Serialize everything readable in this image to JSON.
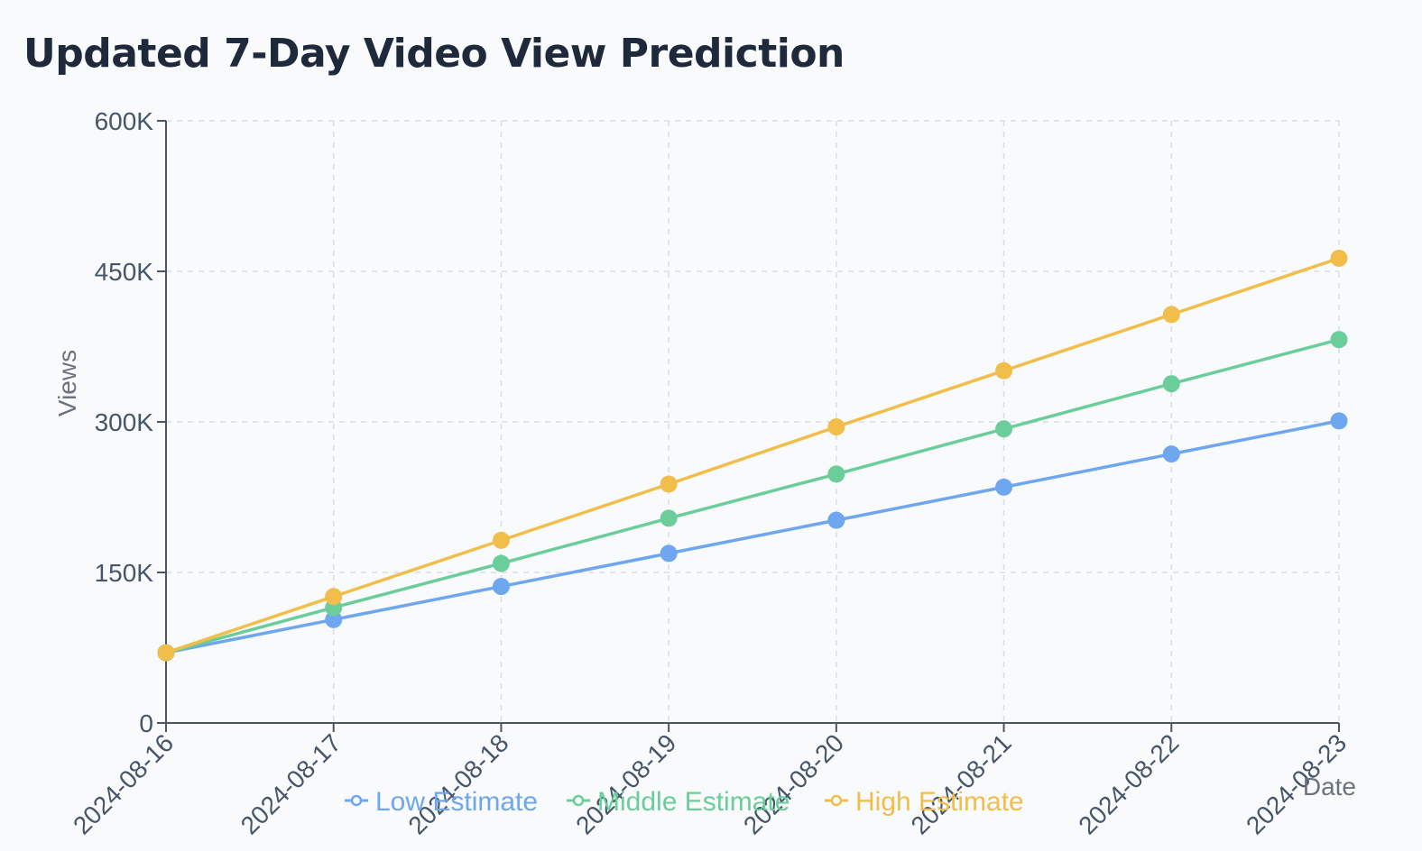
{
  "chart_data": {
    "type": "line",
    "title": "Updated 7-Day Video View Prediction",
    "xlabel": "Date",
    "ylabel": "Views",
    "x": [
      "2024-08-16",
      "2024-08-17",
      "2024-08-18",
      "2024-08-19",
      "2024-08-20",
      "2024-08-21",
      "2024-08-22",
      "2024-08-23"
    ],
    "ylim": [
      0,
      600000
    ],
    "yticks": [
      0,
      150000,
      300000,
      450000,
      600000
    ],
    "ytick_labels": [
      "0",
      "150K",
      "300K",
      "450K",
      "600K"
    ],
    "grid": true,
    "legend_position": "bottom",
    "series": [
      {
        "name": "Low Estimate",
        "color": "#6ea6ef",
        "values": [
          70000,
          103000,
          136000,
          169000,
          202000,
          235000,
          268000,
          301000
        ]
      },
      {
        "name": "Middle Estimate",
        "color": "#6bce9a",
        "values": [
          70000,
          115000,
          159000,
          204000,
          248000,
          293000,
          338000,
          382000
        ]
      },
      {
        "name": "High Estimate",
        "color": "#f2be4b",
        "values": [
          70000,
          126000,
          182000,
          238000,
          295000,
          351000,
          407000,
          463000
        ]
      }
    ]
  }
}
